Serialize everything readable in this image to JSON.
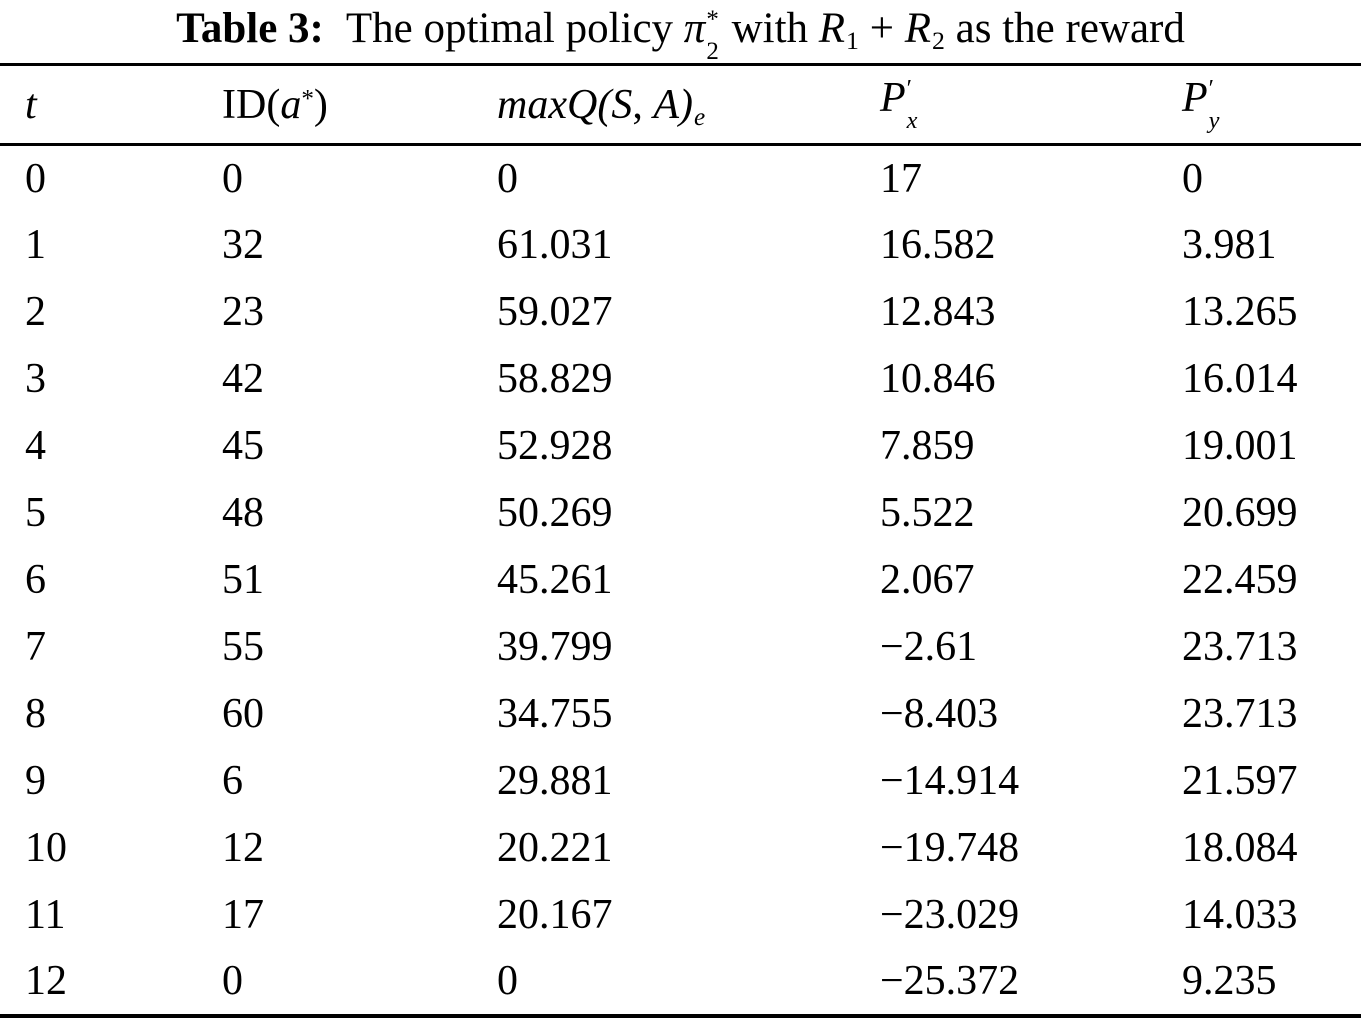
{
  "page": {
    "background": "#ffffff",
    "text_color": "#000000",
    "rule_color": "#000000"
  },
  "title": {
    "label": "Table 3:",
    "part1": "The optimal policy",
    "pi": "π",
    "pi_sup": "*",
    "pi_sub": "2",
    "part2": "with",
    "r1": "R",
    "r1_sub": "1",
    "plus": "+",
    "r2": "R",
    "r2_sub": "2",
    "part3": "as the reward"
  },
  "table": {
    "header": {
      "t": "t",
      "id_roman": "ID",
      "id_open": "(",
      "id_var": "a",
      "id_sup": "*",
      "id_close": ")",
      "q_fn": "maxQ",
      "q_open": "(",
      "q_s": "S",
      "q_comma": ",",
      "q_a": "A",
      "q_close": ")",
      "q_sub": "e",
      "px_base": "P",
      "px_prime": "′",
      "px_sub": "x",
      "py_base": "P",
      "py_prime": "′",
      "py_sub": "y"
    },
    "rows": [
      [
        "0",
        "0",
        "0",
        "17",
        "0"
      ],
      [
        "1",
        "32",
        "61.031",
        "16.582",
        "3.981"
      ],
      [
        "2",
        "23",
        "59.027",
        "12.843",
        "13.265"
      ],
      [
        "3",
        "42",
        "58.829",
        "10.846",
        "16.014"
      ],
      [
        "4",
        "45",
        "52.928",
        "7.859",
        "19.001"
      ],
      [
        "5",
        "48",
        "50.269",
        "5.522",
        "20.699"
      ],
      [
        "6",
        "51",
        "45.261",
        "2.067",
        "22.459"
      ],
      [
        "7",
        "55",
        "39.799",
        "−2.61",
        "23.713"
      ],
      [
        "8",
        "60",
        "34.755",
        "−8.403",
        "23.713"
      ],
      [
        "9",
        "6",
        "29.881",
        "−14.914",
        "21.597"
      ],
      [
        "10",
        "12",
        "20.221",
        "−19.748",
        "18.084"
      ],
      [
        "11",
        "17",
        "20.167",
        "−23.029",
        "14.033"
      ],
      [
        "12",
        "0",
        "0",
        "−25.372",
        "9.235"
      ]
    ]
  }
}
